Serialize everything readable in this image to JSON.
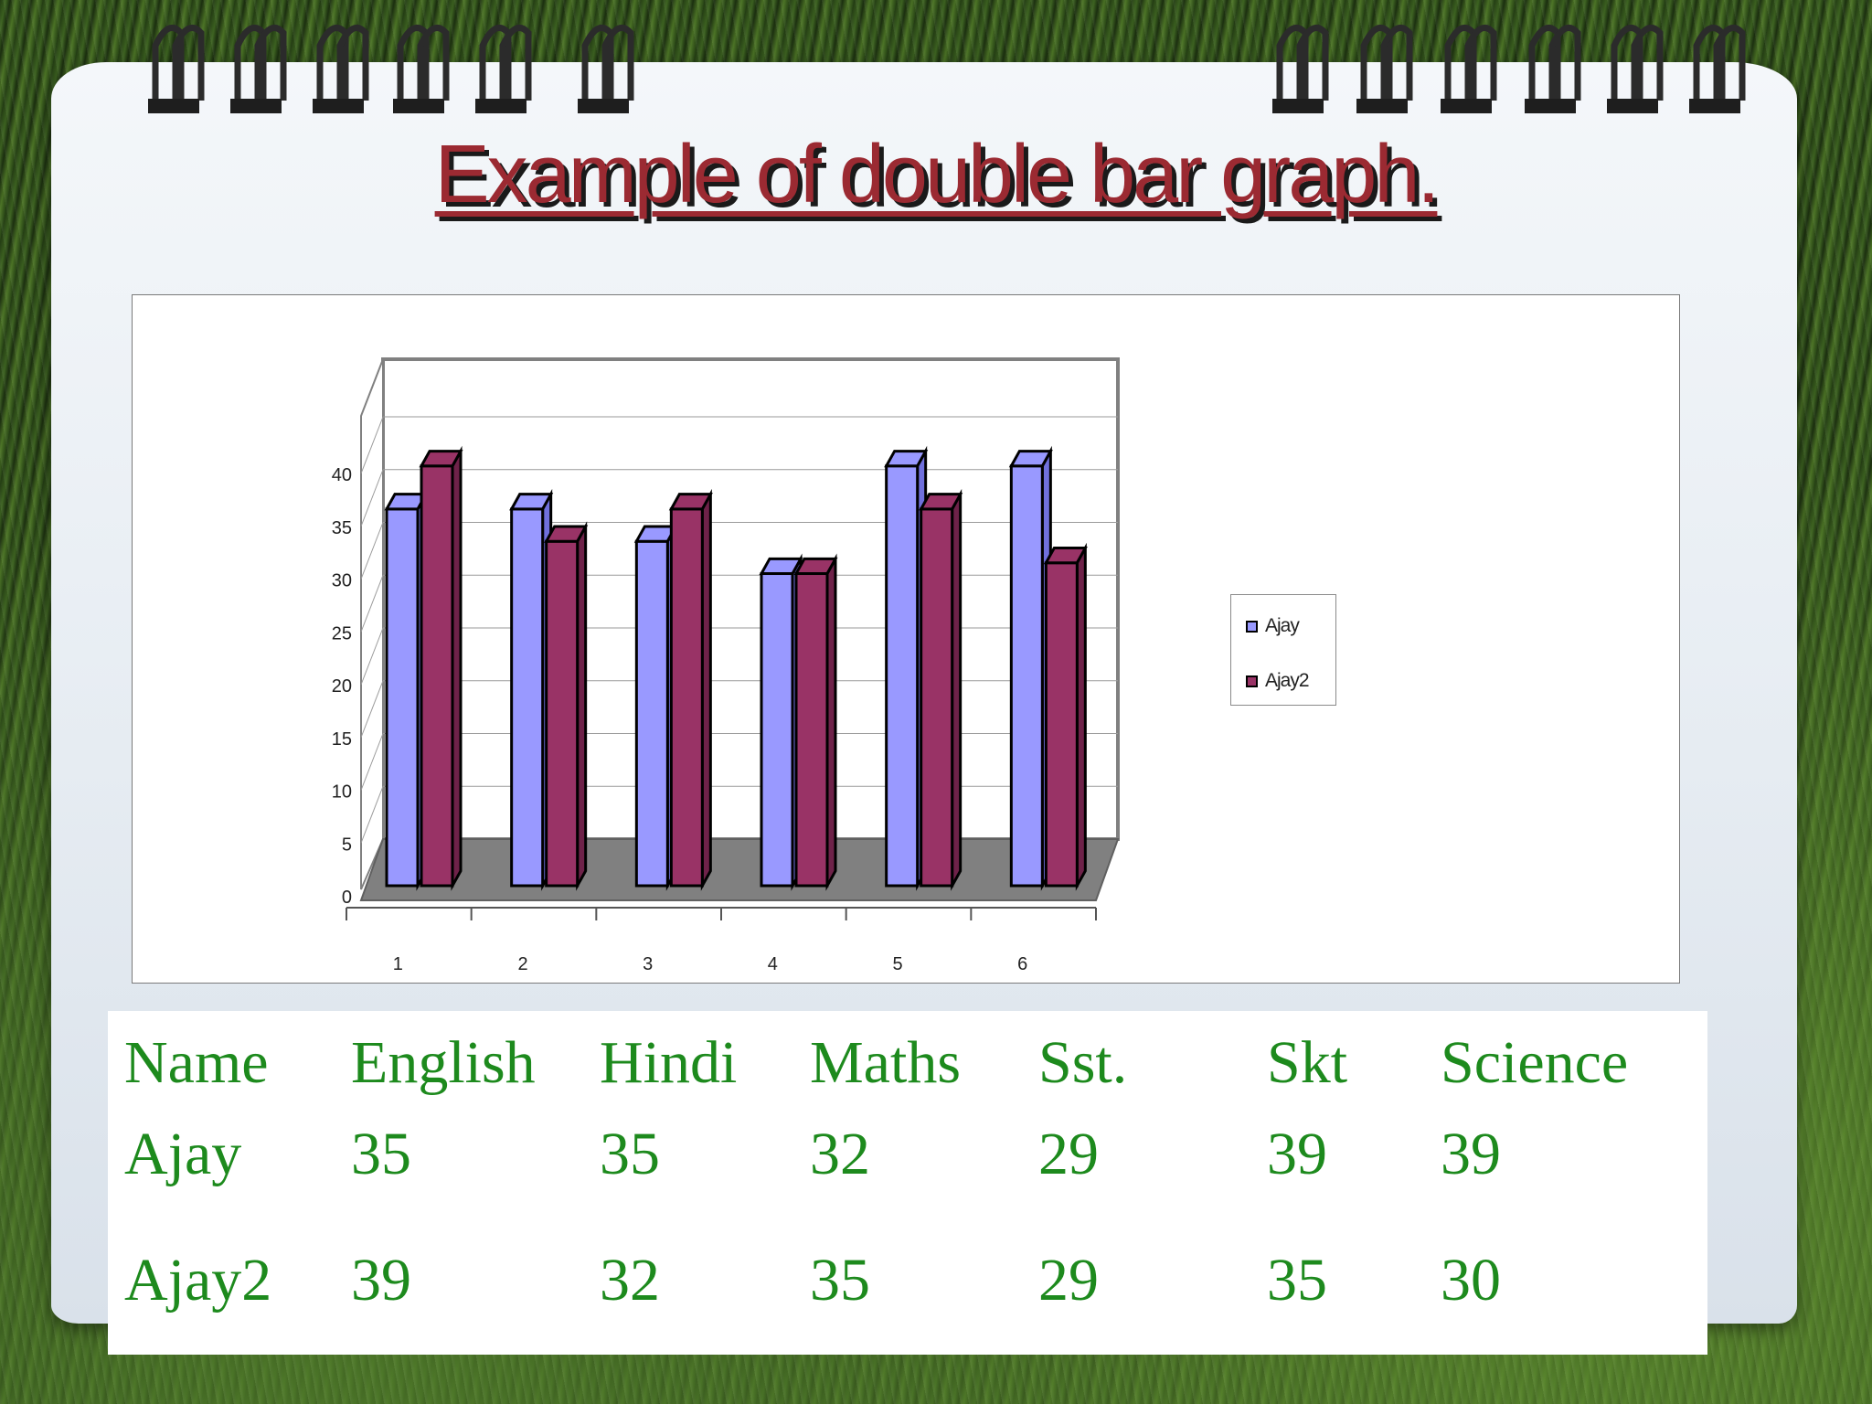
{
  "title": "Example of double bar graph.",
  "chart_data": {
    "type": "bar",
    "categories": [
      "1",
      "2",
      "3",
      "4",
      "5",
      "6"
    ],
    "series": [
      {
        "name": "Ajay",
        "values": [
          35,
          35,
          32,
          29,
          39,
          39
        ],
        "color": "#9999ff"
      },
      {
        "name": "Ajay2",
        "values": [
          39,
          32,
          35,
          29,
          35,
          30
        ],
        "color": "#993366"
      }
    ],
    "y_ticks": [
      "0",
      "5",
      "10",
      "15",
      "20",
      "25",
      "30",
      "35",
      "40"
    ],
    "ylim": [
      0,
      40
    ],
    "grid": true,
    "legend_position": "right",
    "floor_color": "#808080"
  },
  "legend": {
    "items": [
      "Ajay",
      "Ajay2"
    ]
  },
  "table": {
    "headers": [
      "Name",
      "English",
      "Hindi",
      "Maths",
      "Sst.",
      "Skt",
      "Science"
    ],
    "rows": [
      [
        "Ajay",
        "35",
        "35",
        "32",
        "29",
        "39",
        "39"
      ],
      [
        "Ajay2",
        "39",
        "32",
        "35",
        "29",
        "35",
        "30"
      ]
    ],
    "text_color": "#1d8a1d"
  }
}
